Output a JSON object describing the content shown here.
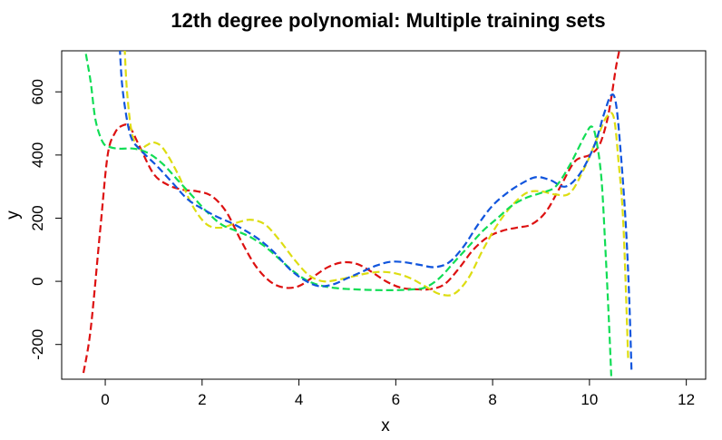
{
  "chart_data": {
    "type": "line",
    "title": "12th degree polynomial: Multiple training sets",
    "xlabel": "x",
    "ylabel": "y",
    "xlim": [
      -0.9,
      12.4
    ],
    "ylim": [
      -310,
      730
    ],
    "xticks": [
      0,
      2,
      4,
      6,
      8,
      10,
      12
    ],
    "yticks": [
      -200,
      0,
      200,
      400,
      600
    ],
    "xtick_labels": [
      "0",
      "2",
      "4",
      "6",
      "8",
      "10",
      "12"
    ],
    "ytick_labels": [
      "-200",
      "0",
      "200",
      "400",
      "600"
    ],
    "grid": false,
    "legend": "none",
    "line_style": "dashed",
    "series": [
      {
        "color": "#dd1111",
        "x": [
          -0.45,
          -0.3,
          -0.1,
          0.05,
          0.2,
          0.35,
          0.5,
          0.7,
          1.0,
          1.3,
          1.6,
          1.9,
          2.2,
          2.5,
          2.8,
          3.1,
          3.4,
          3.7,
          4.0,
          4.3,
          4.6,
          4.9,
          5.2,
          5.5,
          5.8,
          6.1,
          6.4,
          6.7,
          7.0,
          7.3,
          7.6,
          7.9,
          8.2,
          8.5,
          8.8,
          9.1,
          9.4,
          9.7,
          10.0,
          10.2,
          10.35,
          10.45,
          10.55,
          10.63
        ],
        "y": [
          -290,
          -150,
          170,
          400,
          470,
          493,
          490,
          430,
          340,
          305,
          290,
          285,
          270,
          220,
          130,
          50,
          0,
          -20,
          -15,
          15,
          45,
          60,
          55,
          30,
          0,
          -20,
          -25,
          -25,
          -10,
          40,
          100,
          140,
          160,
          170,
          180,
          220,
          300,
          380,
          400,
          430,
          500,
          580,
          680,
          740
        ]
      },
      {
        "color": "#dddd11",
        "x": [
          0.4,
          0.45,
          0.55,
          0.7,
          0.85,
          1.0,
          1.2,
          1.5,
          1.8,
          2.1,
          2.4,
          2.7,
          3.0,
          3.3,
          3.6,
          3.9,
          4.2,
          4.5,
          4.8,
          5.1,
          5.4,
          5.7,
          6.0,
          6.3,
          6.6,
          6.9,
          7.2,
          7.5,
          7.8,
          8.1,
          8.4,
          8.7,
          9.0,
          9.3,
          9.6,
          9.9,
          10.15,
          10.35,
          10.5,
          10.6,
          10.7,
          10.8
        ],
        "y": [
          740,
          600,
          470,
          420,
          430,
          440,
          420,
          340,
          240,
          180,
          170,
          185,
          195,
          180,
          130,
          70,
          20,
          0,
          5,
          15,
          25,
          30,
          25,
          10,
          -15,
          -40,
          -40,
          10,
          100,
          180,
          240,
          280,
          285,
          275,
          280,
          360,
          450,
          520,
          520,
          380,
          180,
          -250
        ]
      },
      {
        "color": "#11dd55",
        "x": [
          -0.4,
          -0.3,
          -0.2,
          -0.05,
          0.1,
          0.3,
          0.6,
          0.9,
          1.2,
          1.5,
          1.8,
          2.1,
          2.4,
          2.7,
          3.0,
          3.3,
          3.6,
          3.9,
          4.2,
          4.5,
          4.8,
          5.1,
          5.4,
          5.7,
          6.0,
          6.3,
          6.6,
          6.9,
          7.2,
          7.5,
          7.8,
          8.1,
          8.4,
          8.7,
          9.0,
          9.3,
          9.6,
          9.9,
          10.05,
          10.15,
          10.25,
          10.33,
          10.4,
          10.45
        ],
        "y": [
          720,
          630,
          510,
          440,
          425,
          420,
          420,
          405,
          370,
          320,
          270,
          220,
          180,
          160,
          140,
          110,
          70,
          30,
          0,
          -15,
          -22,
          -25,
          -27,
          -28,
          -28,
          -26,
          -20,
          10,
          60,
          110,
          160,
          200,
          240,
          265,
          280,
          300,
          370,
          460,
          490,
          440,
          320,
          100,
          -120,
          -300
        ]
      },
      {
        "color": "#1155dd",
        "x": [
          0.3,
          0.35,
          0.45,
          0.55,
          0.7,
          0.9,
          1.1,
          1.4,
          1.7,
          2.0,
          2.3,
          2.6,
          2.9,
          3.2,
          3.5,
          3.8,
          4.1,
          4.4,
          4.7,
          5.0,
          5.3,
          5.6,
          5.9,
          6.2,
          6.5,
          6.8,
          7.1,
          7.4,
          7.7,
          8.0,
          8.3,
          8.6,
          8.9,
          9.2,
          9.5,
          9.8,
          10.1,
          10.3,
          10.45,
          10.55,
          10.65,
          10.75,
          10.82,
          10.87
        ],
        "y": [
          740,
          620,
          510,
          450,
          420,
          390,
          360,
          310,
          260,
          230,
          205,
          185,
          160,
          130,
          90,
          40,
          5,
          -15,
          -10,
          10,
          30,
          50,
          62,
          60,
          52,
          45,
          60,
          110,
          180,
          240,
          280,
          310,
          330,
          320,
          300,
          340,
          430,
          530,
          590,
          560,
          400,
          180,
          -50,
          -290
        ]
      }
    ]
  }
}
